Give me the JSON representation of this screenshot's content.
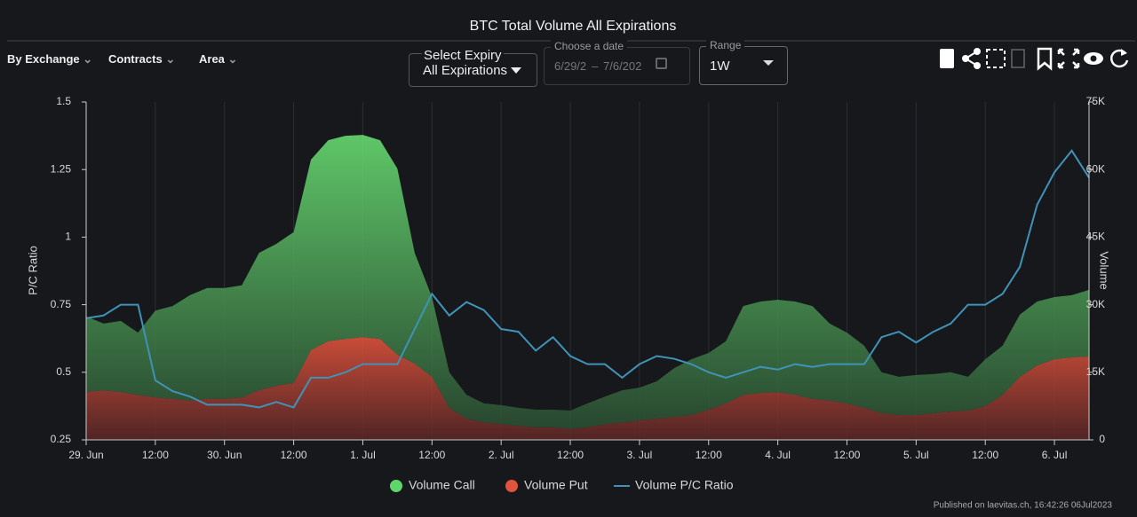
{
  "ui": {
    "filters": [
      "By Exchange",
      "Contracts",
      "Area"
    ],
    "expiry_label": "Select Expiry",
    "expiry_value": "All Expirations",
    "date_label": "Choose a date",
    "date_start": "6/29/2",
    "date_sep": "–",
    "date_end": "7/6/202",
    "range_label": "Range",
    "range_value": "1W",
    "footer": "Published on laevitas.ch, 16:42:26 06Jul2023"
  },
  "chart_data": {
    "type": "area",
    "title": "BTC Total Volume All Expirations",
    "y_label": "P/C Ratio",
    "y2_label": "Volume",
    "stacked": true,
    "grid": "x",
    "categories": [
      "29. Jun",
      null,
      null,
      null,
      "12:00",
      null,
      null,
      null,
      "30. Jun",
      null,
      null,
      null,
      "12:00",
      null,
      null,
      null,
      "1. Jul",
      null,
      null,
      null,
      "12:00",
      null,
      null,
      null,
      "2. Jul",
      null,
      null,
      null,
      "12:00",
      null,
      null,
      null,
      "3. Jul",
      null,
      null,
      null,
      "12:00",
      null,
      null,
      null,
      "4. Jul",
      null,
      null,
      null,
      "12:00",
      null,
      null,
      null,
      "5. Jul",
      null,
      null,
      null,
      "12:00",
      null,
      null,
      null,
      "6. Jul",
      null,
      null
    ],
    "ylim": [
      0.25,
      1.5
    ],
    "yticks": [
      0.25,
      0.5,
      0.75,
      1,
      1.25,
      1.5
    ],
    "y2lim": [
      0,
      75000
    ],
    "y2ticks": [
      {
        "value": 0,
        "label": "0"
      },
      {
        "value": 15000,
        "label": "15K"
      },
      {
        "value": 30000,
        "label": "30K"
      },
      {
        "value": 45000,
        "label": "45K"
      },
      {
        "value": 60000,
        "label": "60K"
      },
      {
        "value": 75000,
        "label": "75K"
      }
    ],
    "series": [
      {
        "name": "Volume Call",
        "type": "area",
        "axis": "y2",
        "color": "#5ed66a",
        "values": [
          16800,
          14800,
          15800,
          13800,
          19300,
          20600,
          23400,
          24600,
          24600,
          24900,
          30500,
          31500,
          33500,
          42300,
          44600,
          45100,
          44900,
          44100,
          41300,
          24600,
          17700,
          7900,
          5300,
          4200,
          4200,
          4000,
          3900,
          3900,
          4100,
          5300,
          6100,
          7100,
          7300,
          8300,
          10800,
          12400,
          12600,
          13800,
          19700,
          20300,
          20500,
          20700,
          20600,
          17100,
          15700,
          13800,
          9100,
          8500,
          8900,
          8700,
          8700,
          7500,
          10400,
          10900,
          13800,
          14200,
          13800,
          13800,
          14800
        ]
      },
      {
        "name": "Volume Put",
        "type": "area",
        "axis": "y2",
        "color": "#e0533c",
        "values": [
          10600,
          11000,
          10600,
          10000,
          9400,
          9100,
          8700,
          9100,
          9100,
          9400,
          11000,
          12000,
          12600,
          19900,
          21900,
          22400,
          22800,
          22400,
          18900,
          16900,
          14000,
          7100,
          4700,
          3900,
          3500,
          3100,
          2800,
          2800,
          2400,
          2800,
          3500,
          3900,
          4300,
          4700,
          5100,
          5500,
          6700,
          8100,
          10000,
          10400,
          10600,
          10000,
          9100,
          8700,
          8100,
          7100,
          5900,
          5500,
          5500,
          5900,
          6300,
          6500,
          7500,
          10000,
          14000,
          16500,
          17900,
          18300,
          18500
        ]
      },
      {
        "name": "Volume P/C Ratio",
        "type": "line",
        "axis": "y",
        "color": "#3f93b8",
        "values": [
          0.7,
          0.71,
          0.75,
          0.75,
          0.47,
          0.43,
          0.41,
          0.38,
          0.38,
          0.38,
          0.37,
          0.39,
          0.37,
          0.48,
          0.48,
          0.5,
          0.53,
          0.53,
          0.53,
          0.66,
          0.79,
          0.71,
          0.76,
          0.73,
          0.66,
          0.65,
          0.58,
          0.63,
          0.56,
          0.53,
          0.53,
          0.48,
          0.53,
          0.56,
          0.55,
          0.53,
          0.5,
          0.48,
          0.5,
          0.52,
          0.51,
          0.53,
          0.52,
          0.53,
          0.53,
          0.53,
          0.63,
          0.65,
          0.61,
          0.65,
          0.68,
          0.75,
          0.75,
          0.79,
          0.89,
          1.12,
          1.24,
          1.32,
          1.22
        ]
      }
    ]
  }
}
